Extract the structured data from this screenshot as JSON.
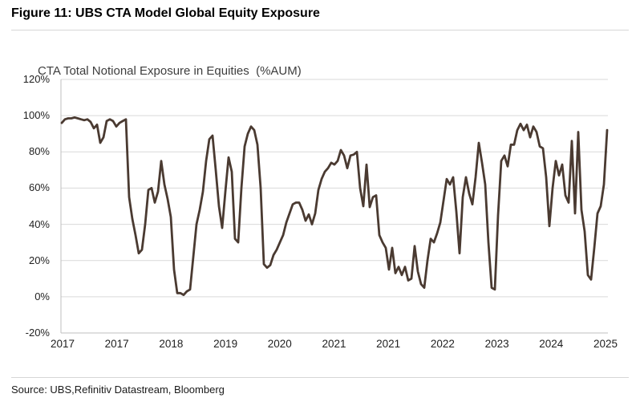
{
  "figure": {
    "title": "Figure 11: UBS CTA Model Global Equity Exposure",
    "source": "Source: UBS,Refinitiv Datastream, Bloomberg"
  },
  "chart_data": {
    "type": "line",
    "title": "CTA Total Notional Exposure in Equities  (%AUM)",
    "xlabel": "",
    "ylabel": "",
    "ylim": [
      -20,
      120
    ],
    "grid": true,
    "line_color": "#4a3a31",
    "grid_color": "#d9d9d9",
    "axis_color": "#bfbfbf",
    "y_ticks": {
      "labels": [
        "120%",
        "100%",
        "80%",
        "60%",
        "40%",
        "20%",
        "0%",
        "-20%"
      ],
      "values": [
        120,
        100,
        80,
        60,
        40,
        20,
        0,
        -20
      ]
    },
    "x_ticks": [
      "2017",
      "2017",
      "2018",
      "2019",
      "2020",
      "2021",
      "2021",
      "2022",
      "2023",
      "2024",
      "2025"
    ],
    "series": [
      {
        "name": "CTA Total Notional Exposure in Equities (%AUM)",
        "note": "values in % of AUM, sampled at 171 evenly spaced points from early 2017 to mid 2025",
        "values": [
          96,
          98,
          98.5,
          98.5,
          99,
          98.5,
          98,
          97.5,
          98,
          96.5,
          93,
          95,
          85,
          88,
          97,
          98,
          97,
          94,
          96,
          97,
          98,
          55,
          43,
          34,
          24,
          26,
          40,
          59,
          60,
          52,
          58,
          75,
          62,
          54,
          44,
          15,
          2,
          2,
          1,
          3,
          4,
          22,
          40,
          48,
          58,
          75,
          87,
          89,
          70,
          50,
          38,
          58,
          77,
          69,
          32,
          30,
          60,
          83,
          90,
          94,
          92,
          84,
          60,
          18,
          16,
          17.5,
          23,
          26,
          30,
          34,
          41,
          46,
          51,
          52,
          52,
          48,
          42,
          45.5,
          40,
          46,
          59,
          65,
          69,
          71,
          74,
          73,
          75,
          81,
          78,
          71,
          78,
          78.5,
          80,
          60,
          50,
          73,
          49.5,
          55,
          56,
          34,
          30,
          27,
          15,
          27,
          13,
          16.5,
          12,
          16.5,
          9,
          10,
          28,
          14,
          7,
          5,
          20,
          32,
          30,
          35,
          41,
          53,
          65,
          62,
          66,
          47,
          24,
          55,
          66,
          57,
          51,
          66,
          85,
          74,
          62,
          30,
          5,
          4,
          45,
          75,
          78,
          72,
          84,
          84,
          92,
          95.5,
          92,
          95,
          88,
          94,
          91,
          83,
          82,
          66,
          39,
          60,
          75,
          67,
          73,
          56,
          52,
          86,
          46,
          91,
          48,
          36,
          12,
          9.5,
          27,
          46,
          50,
          62,
          92
        ]
      }
    ]
  }
}
